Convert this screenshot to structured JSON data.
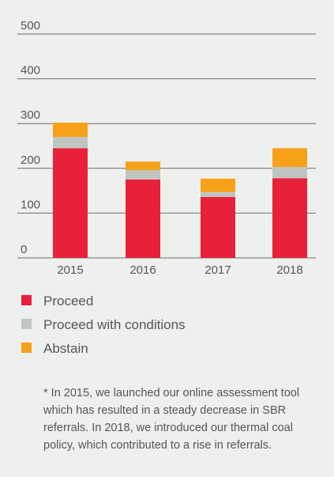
{
  "chart_data": {
    "type": "stacked_bar",
    "categories": [
      "2015",
      "2016",
      "2017",
      "2018"
    ],
    "series": [
      {
        "name": "Proceed",
        "color": "#e8203a",
        "values": [
          245,
          175,
          136,
          178
        ]
      },
      {
        "name": "Proceed with conditions",
        "color": "#bfc6c1",
        "values": [
          25,
          21,
          11,
          25
        ]
      },
      {
        "name": "Abstain",
        "color": "#f7a11a",
        "values": [
          32,
          19,
          30,
          42
        ]
      }
    ],
    "ylim": [
      0,
      500
    ],
    "yticks": [
      0,
      100,
      200,
      300,
      400,
      500
    ],
    "grid": true,
    "annotation": "* In 2015, we launched our online assessment tool which has resulted in a steady decrease in SBR referrals. In 2018, we introduced our thermal coal policy, which contributed to a rise in referrals."
  }
}
